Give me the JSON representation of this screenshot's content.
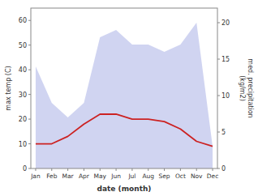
{
  "chart_data": {
    "type": "line",
    "xlabel": "date (month)",
    "ylabel": "max temp (C)",
    "y2label": "med. precipitation\n(kg/m2)",
    "categories": [
      "Jan",
      "Feb",
      "Mar",
      "Apr",
      "May",
      "Jun",
      "Jul",
      "Aug",
      "Sep",
      "Oct",
      "Nov",
      "Dec"
    ],
    "series": [
      {
        "type": "line",
        "color": "#cc2222",
        "values": [
          10,
          10,
          13,
          18,
          22,
          22,
          20,
          20,
          19,
          16,
          11,
          9
        ]
      },
      {
        "type": "area",
        "color": "#b0b8e8",
        "axis": "y2",
        "values": [
          14,
          9,
          7,
          9,
          18,
          19,
          17,
          17,
          16,
          17,
          20,
          3
        ]
      }
    ],
    "ylim": [
      0,
      65
    ],
    "yticks": [
      0,
      10,
      20,
      30,
      40,
      50,
      60
    ],
    "y2lim": [
      0,
      22
    ],
    "y2ticks": [
      0,
      5,
      10,
      15,
      20
    ],
    "grid": false
  }
}
